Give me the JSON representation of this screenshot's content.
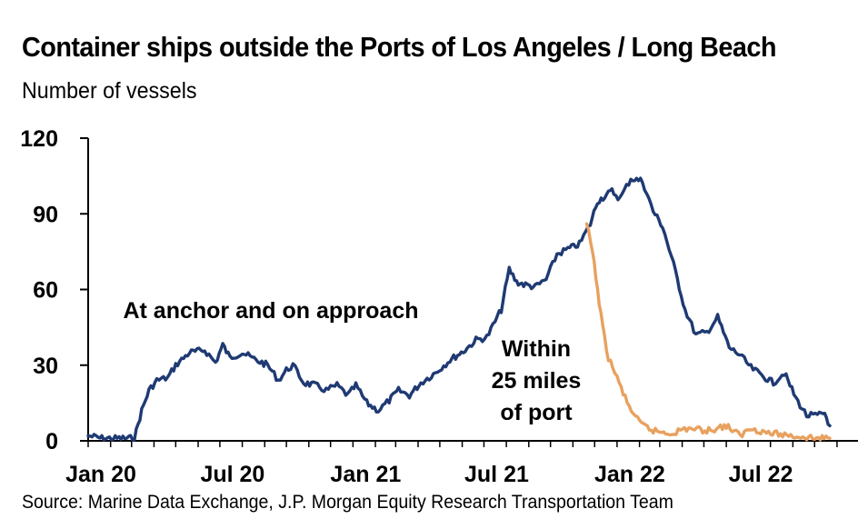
{
  "chart_data": {
    "type": "line",
    "title": "Container ships outside the Ports of Los Angeles / Long Beach",
    "subtitle": "Number of vessels",
    "source": "Source: Marine Data Exchange, J.P. Morgan Equity Research Transportation Team",
    "ylim": [
      0,
      120
    ],
    "yticks": [
      "0",
      "30",
      "60",
      "90",
      "120"
    ],
    "xlim": [
      "2020-01-01",
      "2022-11-30"
    ],
    "xticks": [
      {
        "date": "2020-01-01",
        "label": "Jan 20"
      },
      {
        "date": "2020-07-01",
        "label": "Jul 20"
      },
      {
        "date": "2021-01-01",
        "label": "Jan 21"
      },
      {
        "date": "2021-07-01",
        "label": "Jul 21"
      },
      {
        "date": "2022-01-01",
        "label": "Jan 22"
      },
      {
        "date": "2022-07-01",
        "label": "Jul 22"
      }
    ],
    "grid": false,
    "annotations": [
      {
        "lines": [
          "At anchor and on approach"
        ],
        "series": "anchor"
      },
      {
        "lines": [
          "Within",
          "25 miles",
          "of port"
        ],
        "series": "within"
      }
    ],
    "series": [
      {
        "key": "anchor",
        "color": "#1f3a73",
        "points": [
          [
            "2020-01-01",
            2
          ],
          [
            "2020-01-20",
            1
          ],
          [
            "2020-02-10",
            1
          ],
          [
            "2020-03-05",
            1
          ],
          [
            "2020-03-15",
            12
          ],
          [
            "2020-03-25",
            20
          ],
          [
            "2020-04-05",
            24
          ],
          [
            "2020-04-20",
            25
          ],
          [
            "2020-05-01",
            30
          ],
          [
            "2020-05-20",
            35
          ],
          [
            "2020-06-10",
            36
          ],
          [
            "2020-06-25",
            31
          ],
          [
            "2020-07-05",
            38
          ],
          [
            "2020-07-15",
            33
          ],
          [
            "2020-08-01",
            35
          ],
          [
            "2020-08-20",
            32
          ],
          [
            "2020-09-05",
            30
          ],
          [
            "2020-09-20",
            24
          ],
          [
            "2020-10-01",
            28
          ],
          [
            "2020-10-10",
            30
          ],
          [
            "2020-10-25",
            23
          ],
          [
            "2020-11-10",
            22
          ],
          [
            "2020-11-25",
            20
          ],
          [
            "2020-12-10",
            22
          ],
          [
            "2020-12-25",
            18
          ],
          [
            "2021-01-05",
            22
          ],
          [
            "2021-01-20",
            15
          ],
          [
            "2021-02-05",
            12
          ],
          [
            "2021-02-20",
            16
          ],
          [
            "2021-03-05",
            20
          ],
          [
            "2021-03-20",
            18
          ],
          [
            "2021-04-05",
            23
          ],
          [
            "2021-04-25",
            27
          ],
          [
            "2021-05-15",
            32
          ],
          [
            "2021-06-05",
            36
          ],
          [
            "2021-06-20",
            40
          ],
          [
            "2021-07-05",
            41
          ],
          [
            "2021-07-25",
            52
          ],
          [
            "2021-08-05",
            68
          ],
          [
            "2021-08-15",
            63
          ],
          [
            "2021-08-25",
            62
          ],
          [
            "2021-09-10",
            61
          ],
          [
            "2021-09-25",
            64
          ],
          [
            "2021-10-10",
            74
          ],
          [
            "2021-10-25",
            76
          ],
          [
            "2021-11-10",
            78
          ],
          [
            "2021-11-25",
            86
          ],
          [
            "2021-12-05",
            95
          ],
          [
            "2021-12-15",
            97
          ],
          [
            "2021-12-25",
            99
          ],
          [
            "2022-01-05",
            96
          ],
          [
            "2022-01-20",
            104
          ],
          [
            "2022-02-05",
            103
          ],
          [
            "2022-02-20",
            91
          ],
          [
            "2022-03-05",
            85
          ],
          [
            "2022-03-20",
            70
          ],
          [
            "2022-04-05",
            52
          ],
          [
            "2022-04-20",
            42
          ],
          [
            "2022-05-05",
            43
          ],
          [
            "2022-05-20",
            49
          ],
          [
            "2022-06-05",
            37
          ],
          [
            "2022-06-20",
            34
          ],
          [
            "2022-07-05",
            29
          ],
          [
            "2022-07-20",
            26
          ],
          [
            "2022-08-05",
            23
          ],
          [
            "2022-08-20",
            27
          ],
          [
            "2022-09-05",
            17
          ],
          [
            "2022-09-20",
            10
          ],
          [
            "2022-10-05",
            10
          ],
          [
            "2022-10-15",
            11
          ],
          [
            "2022-10-22",
            6
          ]
        ]
      },
      {
        "key": "within",
        "color": "#e8a15f",
        "points": [
          [
            "2021-11-20",
            86
          ],
          [
            "2021-11-28",
            75
          ],
          [
            "2021-12-05",
            60
          ],
          [
            "2021-12-12",
            45
          ],
          [
            "2021-12-20",
            33
          ],
          [
            "2022-01-01",
            25
          ],
          [
            "2022-01-15",
            15
          ],
          [
            "2022-02-01",
            7
          ],
          [
            "2022-02-20",
            4
          ],
          [
            "2022-03-15",
            3
          ],
          [
            "2022-04-10",
            5
          ],
          [
            "2022-05-05",
            4
          ],
          [
            "2022-06-01",
            6
          ],
          [
            "2022-06-20",
            2
          ],
          [
            "2022-07-05",
            5
          ],
          [
            "2022-08-01",
            3
          ],
          [
            "2022-09-01",
            2
          ],
          [
            "2022-10-01",
            1
          ],
          [
            "2022-10-22",
            1
          ]
        ]
      }
    ]
  }
}
